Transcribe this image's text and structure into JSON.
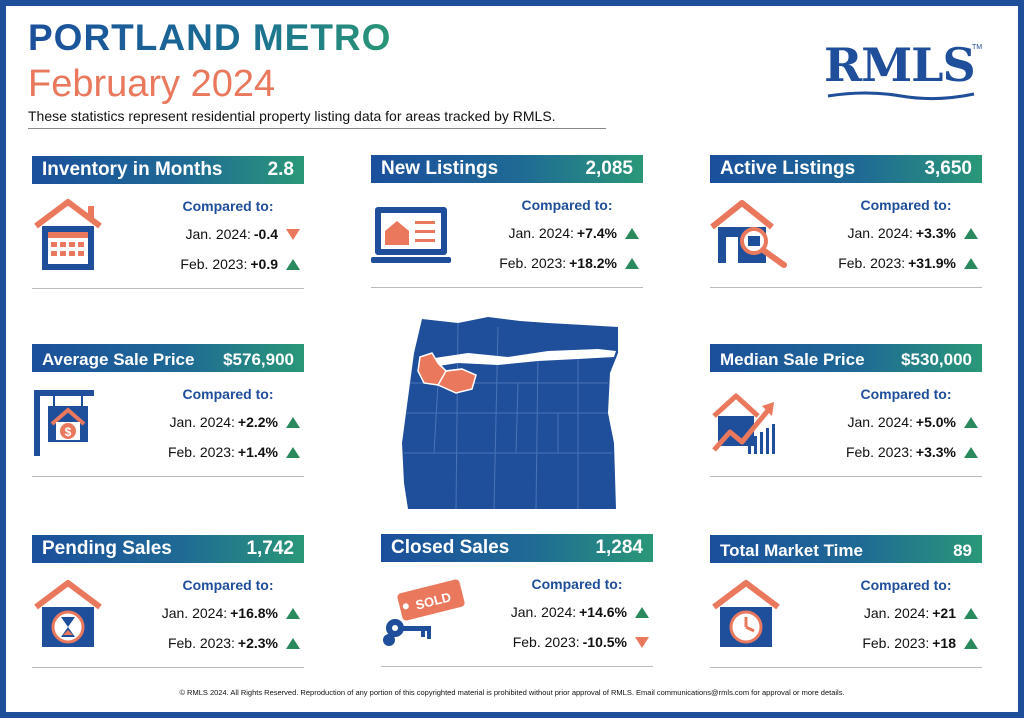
{
  "header": {
    "title": "PORTLAND METRO",
    "period": "February 2024",
    "subtitle": "These statistics represent residential property listing data for areas tracked by RMLS.",
    "logo": "RMLS",
    "logo_tm": "TM"
  },
  "compared_label": "Compared to:",
  "cards": {
    "inventory": {
      "label": "Inventory in Months",
      "value": "2.8",
      "r1_label": "Jan. 2024:",
      "r1_value": "-0.4",
      "r1_dir": "down",
      "r2_label": "Feb. 2023:",
      "r2_value": "+0.9",
      "r2_dir": "up"
    },
    "new_listings": {
      "label": "New Listings",
      "value": "2,085",
      "r1_label": "Jan. 2024:",
      "r1_value": "+7.4%",
      "r1_dir": "up",
      "r2_label": "Feb. 2023:",
      "r2_value": "+18.2%",
      "r2_dir": "up"
    },
    "active_listings": {
      "label": "Active Listings",
      "value": "3,650",
      "r1_label": "Jan. 2024:",
      "r1_value": "+3.3%",
      "r1_dir": "up",
      "r2_label": "Feb. 2023:",
      "r2_value": "+31.9%",
      "r2_dir": "up"
    },
    "average_sale_price": {
      "label": "Average Sale Price",
      "value": "$576,900",
      "r1_label": "Jan. 2024:",
      "r1_value": "+2.2%",
      "r1_dir": "up",
      "r2_label": "Feb. 2023:",
      "r2_value": "+1.4%",
      "r2_dir": "up"
    },
    "median_sale_price": {
      "label": "Median Sale Price",
      "value": "$530,000",
      "r1_label": "Jan. 2024:",
      "r1_value": "+5.0%",
      "r1_dir": "up",
      "r2_label": "Feb. 2023:",
      "r2_value": "+3.3%",
      "r2_dir": "up"
    },
    "pending_sales": {
      "label": "Pending Sales",
      "value": "1,742",
      "r1_label": "Jan. 2024:",
      "r1_value": "+16.8%",
      "r1_dir": "up",
      "r2_label": "Feb. 2023:",
      "r2_value": "+2.3%",
      "r2_dir": "up"
    },
    "closed_sales": {
      "label": "Closed Sales",
      "value": "1,284",
      "r1_label": "Jan. 2024:",
      "r1_value": "+14.6%",
      "r1_dir": "up",
      "r2_label": "Feb. 2023:",
      "r2_value": "-10.5%",
      "r2_dir": "down"
    },
    "total_market_time": {
      "label": "Total Market Time",
      "value": "89",
      "r1_label": "Jan. 2024:",
      "r1_value": "+21",
      "r1_dir": "up",
      "r2_label": "Feb. 2023:",
      "r2_value": "+18",
      "r2_dir": "up"
    }
  },
  "sold_sign": "SOLD",
  "footer": "© RMLS 2024. All Rights Reserved. Reproduction of any portion of this copyrighted material is prohibited without prior approval of RMLS. Email communications@rmls.com for approval or more details.",
  "colors": {
    "navy": "#1f4e9a",
    "teal": "#2a9878",
    "coral": "#e9785d",
    "green": "#2a8a5e"
  }
}
